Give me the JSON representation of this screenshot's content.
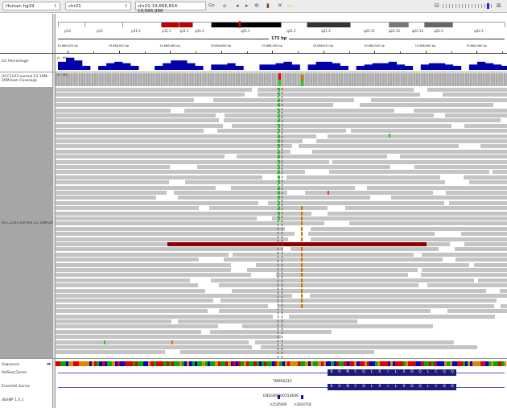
{
  "toolbar": {
    "genome": "Human hg19",
    "chromosome": "chr21",
    "locus": "chr21:19,666,814-19,666,988",
    "go_label": "Go"
  },
  "ideogram": {
    "bands": [
      "p13",
      "p12",
      "p11.2",
      "p11.1",
      "q11.1",
      "q11.2",
      "q21.1",
      "q21.2",
      "q21.3",
      "q22.11",
      "q22.12",
      "q22.13",
      "q22.2",
      "q22.3"
    ]
  },
  "ruler": {
    "span": "175 bp",
    "ticks": [
      "19,666,820 bp",
      "19,666,840 bp",
      "19,666,860 bp",
      "19,666,880 bp",
      "19,666,900 bp",
      "19,666,920 bp",
      "19,666,940 bp",
      "19,666,960 bp",
      "19,666,980 bp"
    ]
  },
  "tracks": {
    "gc": {
      "name": "GC Percentage",
      "range": "[0 - 85]"
    },
    "coverage": {
      "name": "HCC1143.normal.21.19M-20M.bam Coverage",
      "range": "[0 - 86]"
    },
    "alignments": {
      "name": "HCC1143.normal.21.19M-20M.bam"
    },
    "sequence": {
      "name": "Sequence"
    },
    "refseq": {
      "name": "RefSeq Genes",
      "gene": "TMPRSS15",
      "amino_acids": [
        "K",
        "H",
        "N",
        "C",
        "Q",
        "L",
        "R",
        "I",
        "L",
        "S",
        "D",
        "Q",
        "L",
        "C",
        "Q",
        "Q"
      ]
    },
    "ensembl": {
      "name": "Ensembl Genes",
      "gene": "ENSG00000154646"
    },
    "dbsnp": {
      "name": "dbSNP 1.3.1",
      "snps": [
        "rs1545000",
        "rs2824718"
      ]
    }
  },
  "colors": {
    "read": "#c4c4c4",
    "gc": "#0000aa",
    "gene": "#1a1a80",
    "mismatch_g": "#22cc22",
    "mismatch_orange": "#d07000",
    "deletion_read": "#8b0000"
  }
}
